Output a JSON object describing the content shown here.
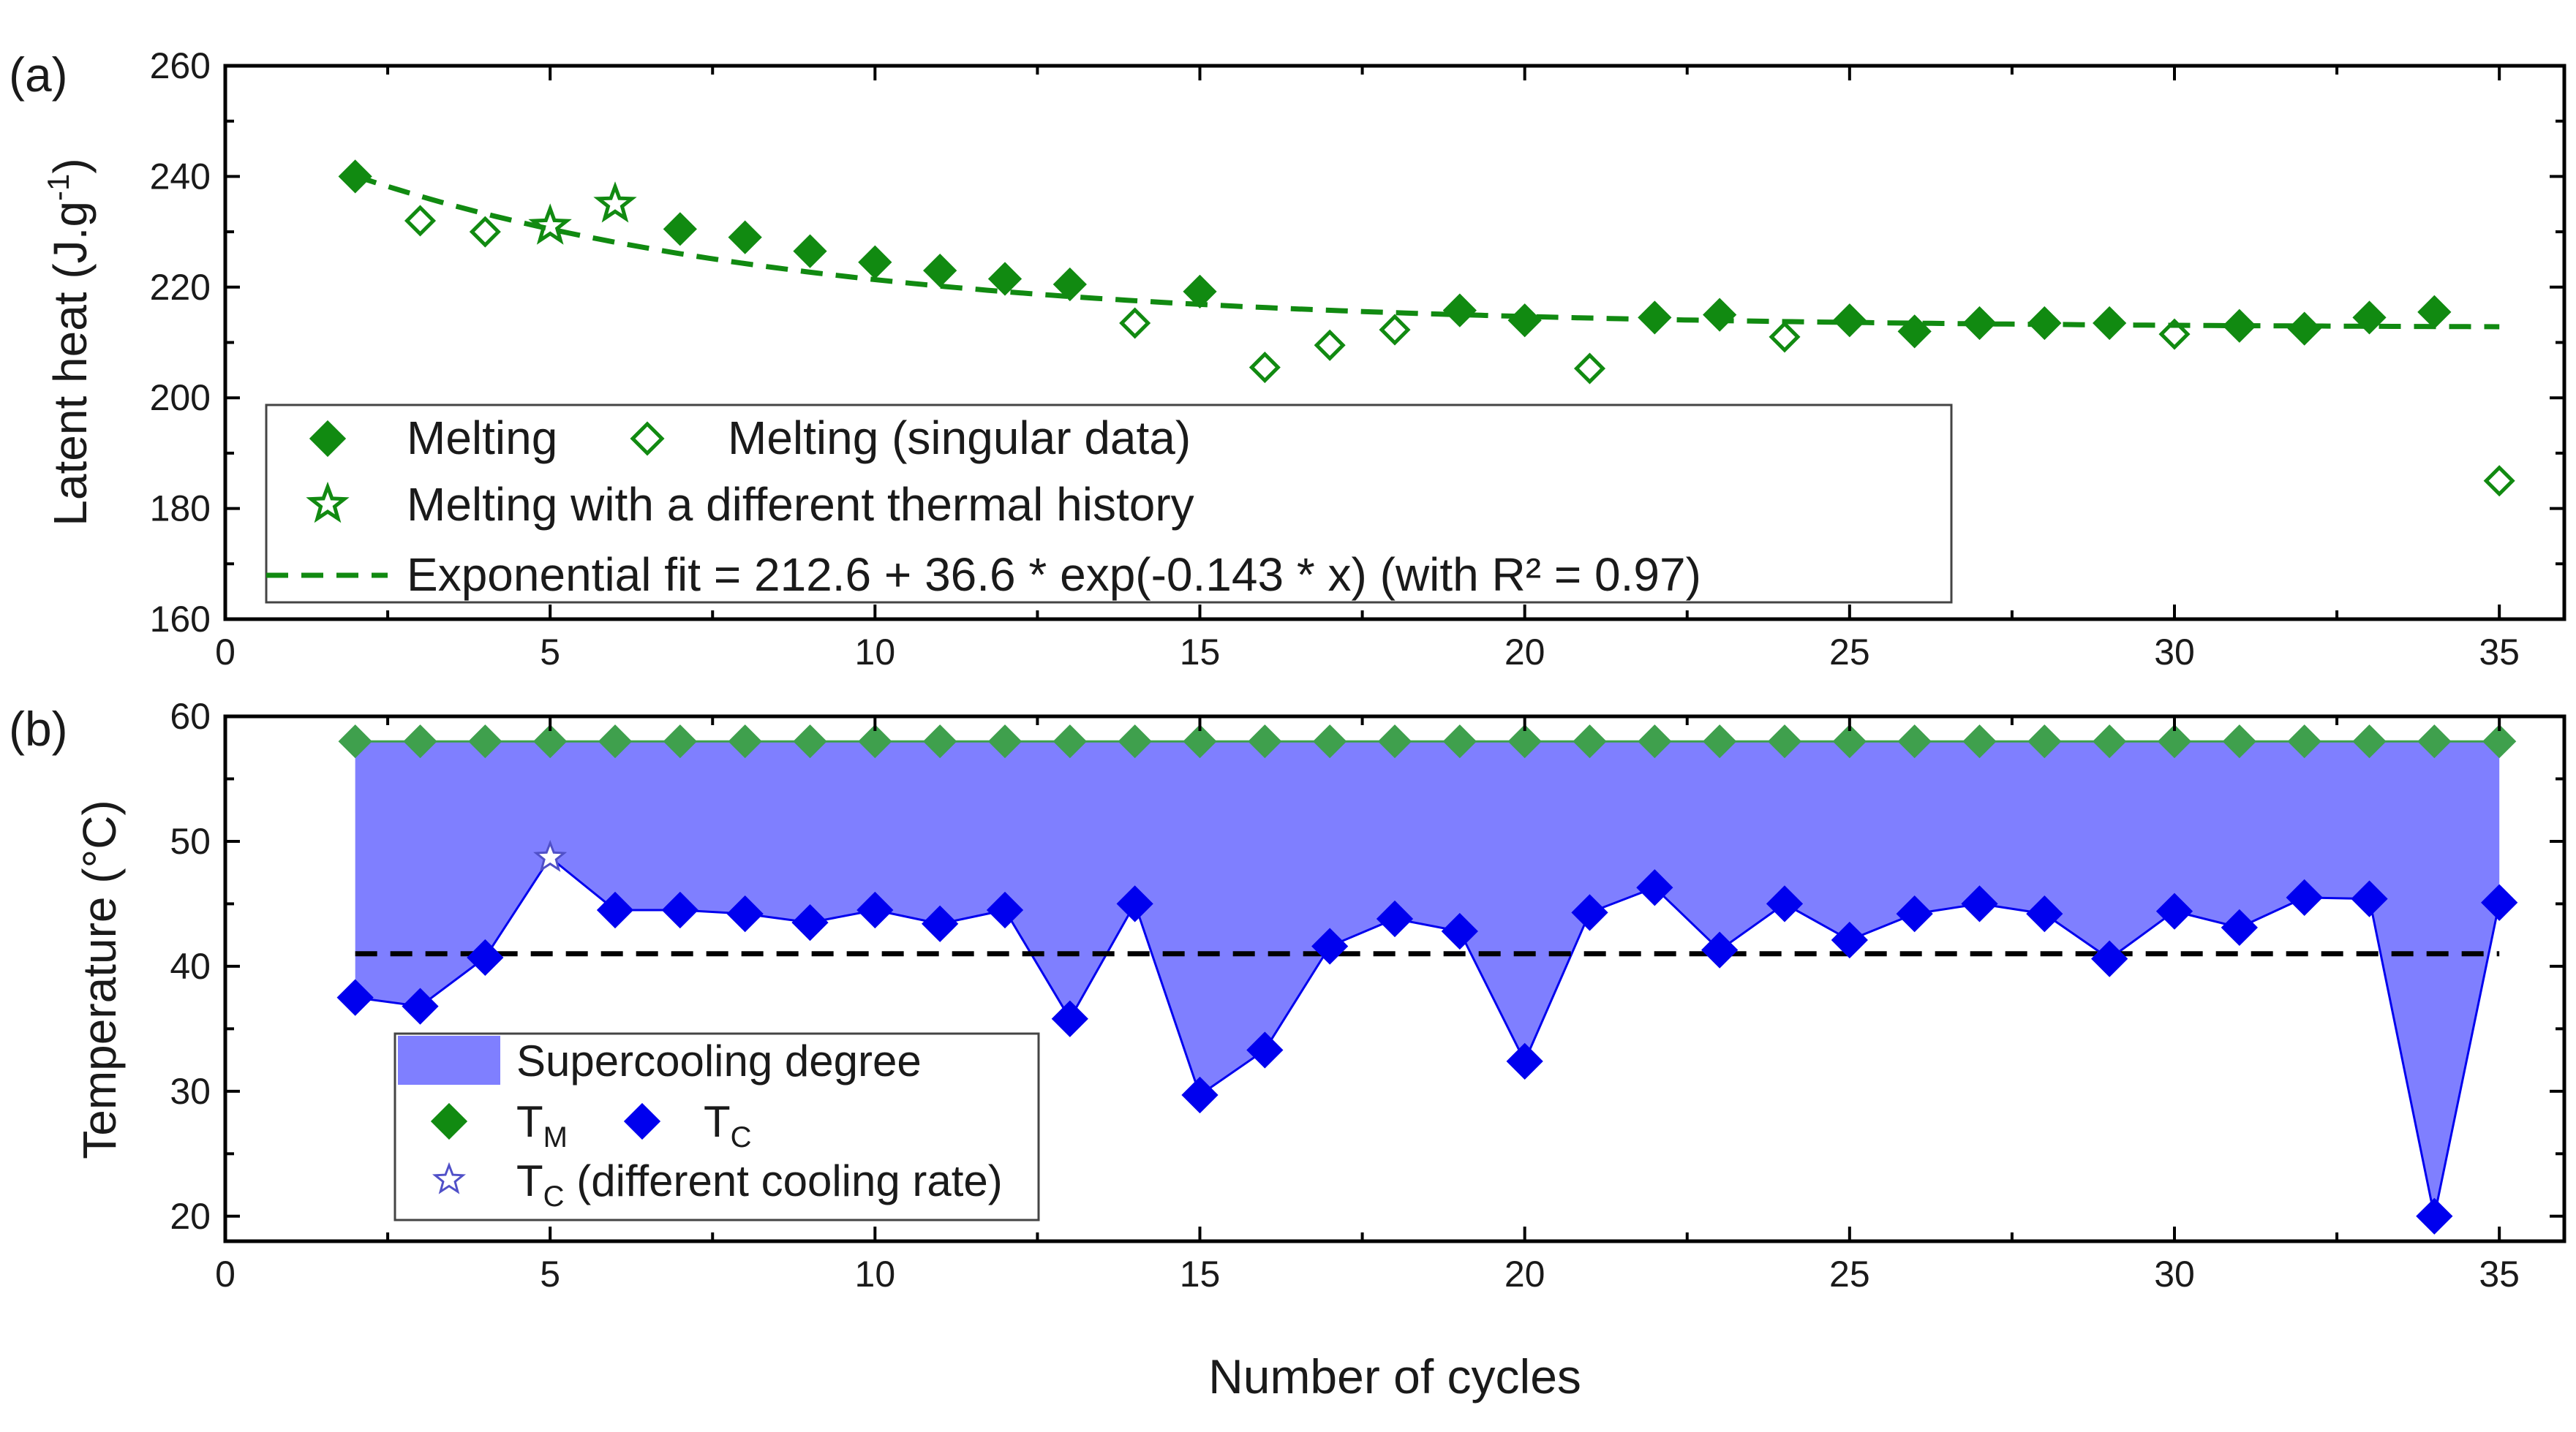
{
  "figure": {
    "xlabel": "Number of cycles"
  },
  "chart_data": [
    {
      "panel_label": "(a)",
      "type": "scatter",
      "title": "",
      "xlabel": "",
      "ylabel": "Latent heat (J.g",
      "ylabel_sup": "-1",
      "ylabel_end": ")",
      "xlim": [
        0,
        36
      ],
      "ylim": [
        160,
        260
      ],
      "xticks": [
        0,
        5,
        10,
        15,
        20,
        25,
        30,
        35
      ],
      "yticks": [
        160,
        180,
        200,
        220,
        240,
        260
      ],
      "colors": {
        "green": "#118a11"
      },
      "series": [
        {
          "name": "Melting",
          "marker": "filled-diamond",
          "x": [
            2,
            7,
            8,
            9,
            10,
            11,
            12,
            13,
            15,
            19,
            20,
            22,
            23,
            25,
            26,
            27,
            28,
            29,
            31,
            32,
            33,
            34
          ],
          "y": [
            240,
            230.5,
            229,
            226.5,
            224.5,
            223,
            221.5,
            220.5,
            219.2,
            215.8,
            214,
            214.5,
            215,
            214,
            212,
            213.5,
            213.5,
            213.5,
            213,
            212.5,
            214.5,
            215.5
          ]
        },
        {
          "name": "Melting (singular data)",
          "marker": "open-diamond",
          "x": [
            3,
            4,
            14,
            16,
            17,
            18,
            21,
            24,
            30,
            35
          ],
          "y": [
            232,
            230,
            213.5,
            205.5,
            209.5,
            212.3,
            205.3,
            211,
            211.5,
            185
          ]
        },
        {
          "name": "Melting with a different thermal history",
          "marker": "open-star",
          "x": [
            5,
            6
          ],
          "y": [
            231,
            235
          ]
        },
        {
          "name": "Exponential fit = 212.6 + 36.6 * exp(-0.143 * x) (with R² = 0.97)",
          "marker": "dashed-line",
          "formula": {
            "a": 212.6,
            "b": 36.6,
            "k": -0.143
          },
          "x_range": [
            2,
            35
          ]
        }
      ],
      "legend": {
        "row1_a": "Melting",
        "row1_b": "Melting (singular data)",
        "row2": "Melting with a different thermal history",
        "row3": "Exponential fit = 212.6 + 36.6 * exp(-0.143 * x) (with R² = 0.97)"
      }
    },
    {
      "panel_label": "(b)",
      "type": "scatter",
      "title": "",
      "xlabel": "Number of cycles",
      "ylabel": "Temperature (°C)",
      "xlim": [
        0,
        36
      ],
      "ylim": [
        18,
        60
      ],
      "xticks": [
        0,
        5,
        10,
        15,
        20,
        25,
        30,
        35
      ],
      "yticks": [
        20,
        30,
        40,
        50,
        60
      ],
      "colors": {
        "green": "#3fa04d",
        "blue": "#0000ee",
        "fill": "#7f7fff",
        "reference": "#000000"
      },
      "reference_line_y": 41,
      "series": [
        {
          "name": "T_M",
          "marker": "filled-diamond",
          "x": [
            2,
            3,
            4,
            5,
            6,
            7,
            8,
            9,
            10,
            11,
            12,
            13,
            14,
            15,
            16,
            17,
            18,
            19,
            20,
            21,
            22,
            23,
            24,
            25,
            26,
            27,
            28,
            29,
            30,
            31,
            32,
            33,
            34,
            35
          ],
          "y": [
            58,
            58,
            58,
            58,
            58,
            58,
            58,
            58,
            58,
            58,
            58,
            58,
            58,
            58,
            58,
            58,
            58,
            58,
            58,
            58,
            58,
            58,
            58,
            58,
            58,
            58,
            58,
            58,
            58,
            58,
            58,
            58,
            58,
            58
          ]
        },
        {
          "name": "T_C",
          "marker": "filled-diamond",
          "x": [
            2,
            3,
            4,
            5,
            6,
            7,
            8,
            9,
            10,
            11,
            12,
            13,
            14,
            15,
            16,
            17,
            18,
            19,
            20,
            21,
            22,
            23,
            24,
            25,
            26,
            27,
            28,
            29,
            30,
            31,
            32,
            33,
            34,
            35
          ],
          "y": [
            37.5,
            36.8,
            40.7,
            48.7,
            44.5,
            44.5,
            44.2,
            43.5,
            44.5,
            43.4,
            44.5,
            35.8,
            45,
            29.7,
            33.3,
            41.6,
            43.8,
            42.8,
            32.4,
            44.3,
            46.3,
            41.3,
            45,
            42.1,
            44.2,
            45,
            44.2,
            40.6,
            44.4,
            43.1,
            45.5,
            45.4,
            20,
            45.1
          ]
        },
        {
          "name": "T_C (different cooling rate)",
          "marker": "open-star",
          "x": [
            5
          ],
          "y": [
            48.7
          ]
        }
      ],
      "legend": {
        "fill_label": "Supercooling degree",
        "tm_main": "T",
        "tm_sub": "M",
        "tc_main": "T",
        "tc_sub": "C",
        "tc2_main": "T",
        "tc2_sub": "C",
        "tc2_rest": " (different cooling rate)"
      }
    }
  ]
}
